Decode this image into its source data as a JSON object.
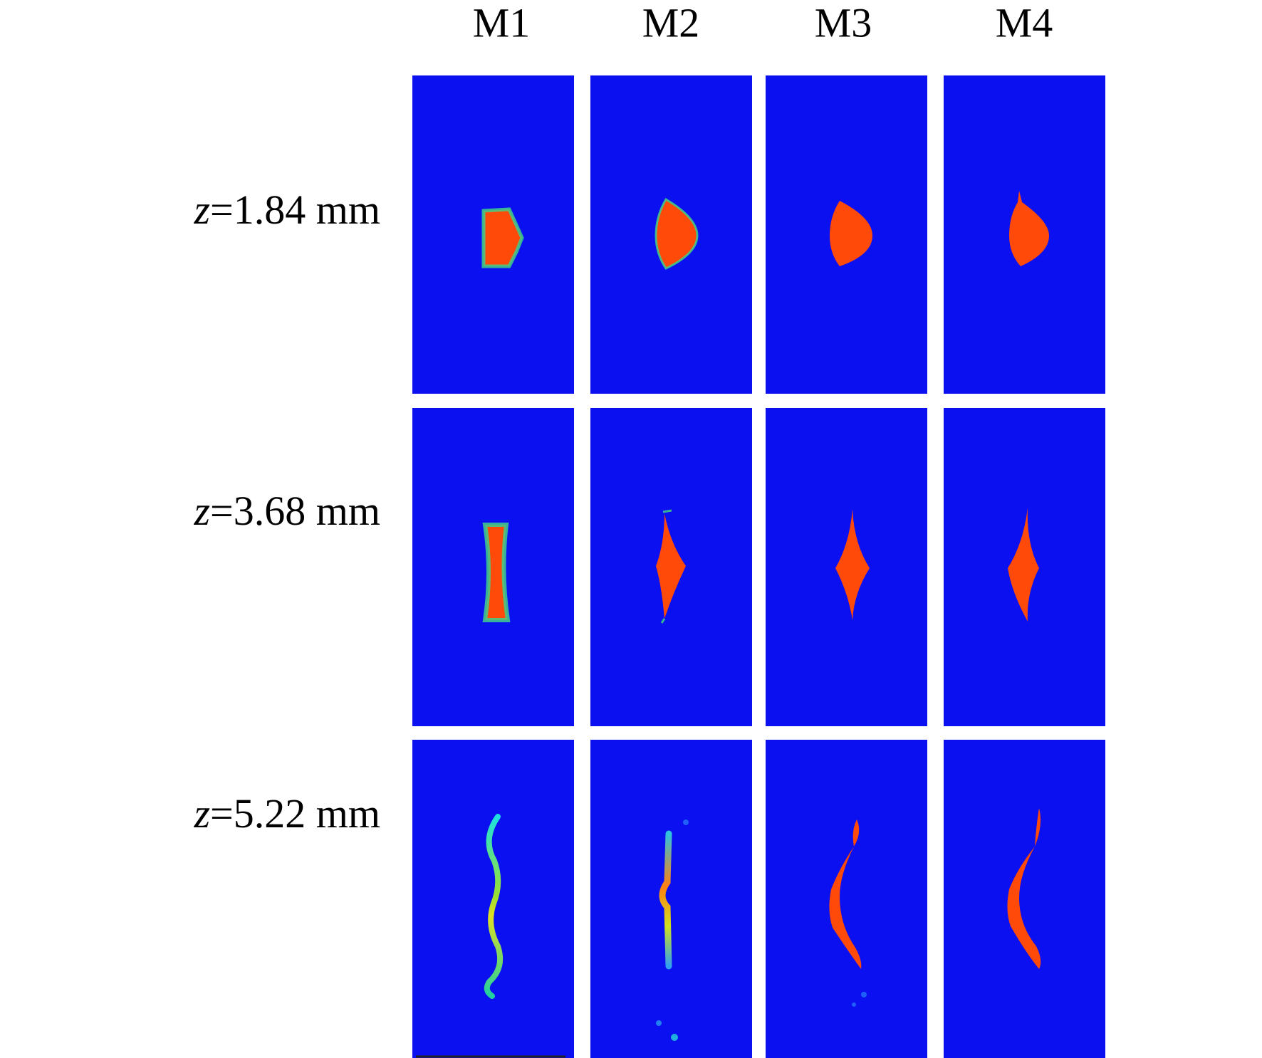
{
  "columns": [
    "M1",
    "M2",
    "M3",
    "M4"
  ],
  "rows": [
    {
      "symbol": "z",
      "text": "=1.84 mm"
    },
    {
      "symbol": "z",
      "text": "=3.68 mm"
    },
    {
      "symbol": "z",
      "text": "=5.22 mm"
    }
  ]
}
